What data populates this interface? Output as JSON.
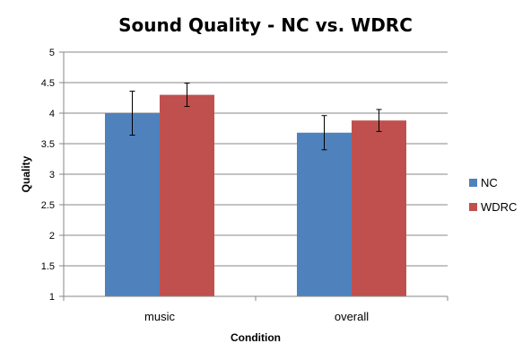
{
  "chart_data": {
    "type": "bar",
    "title": "Sound Quality - NC vs. WDRC",
    "xlabel": "Condition",
    "ylabel": "Quality",
    "ylim": [
      1,
      5
    ],
    "yticks": [
      "1",
      "1.5",
      "2",
      "2.5",
      "3",
      "3.5",
      "4",
      "4.5",
      "5"
    ],
    "grid": true,
    "legend": "right",
    "categories": [
      "music",
      "overall"
    ],
    "series": [
      {
        "name": "NC",
        "color": "#4f81bd",
        "values": [
          4.0,
          3.68
        ],
        "error": [
          0.36,
          0.28
        ]
      },
      {
        "name": "WDRC",
        "color": "#c0504d",
        "values": [
          4.3,
          3.88
        ],
        "error": [
          0.19,
          0.18
        ]
      }
    ]
  }
}
